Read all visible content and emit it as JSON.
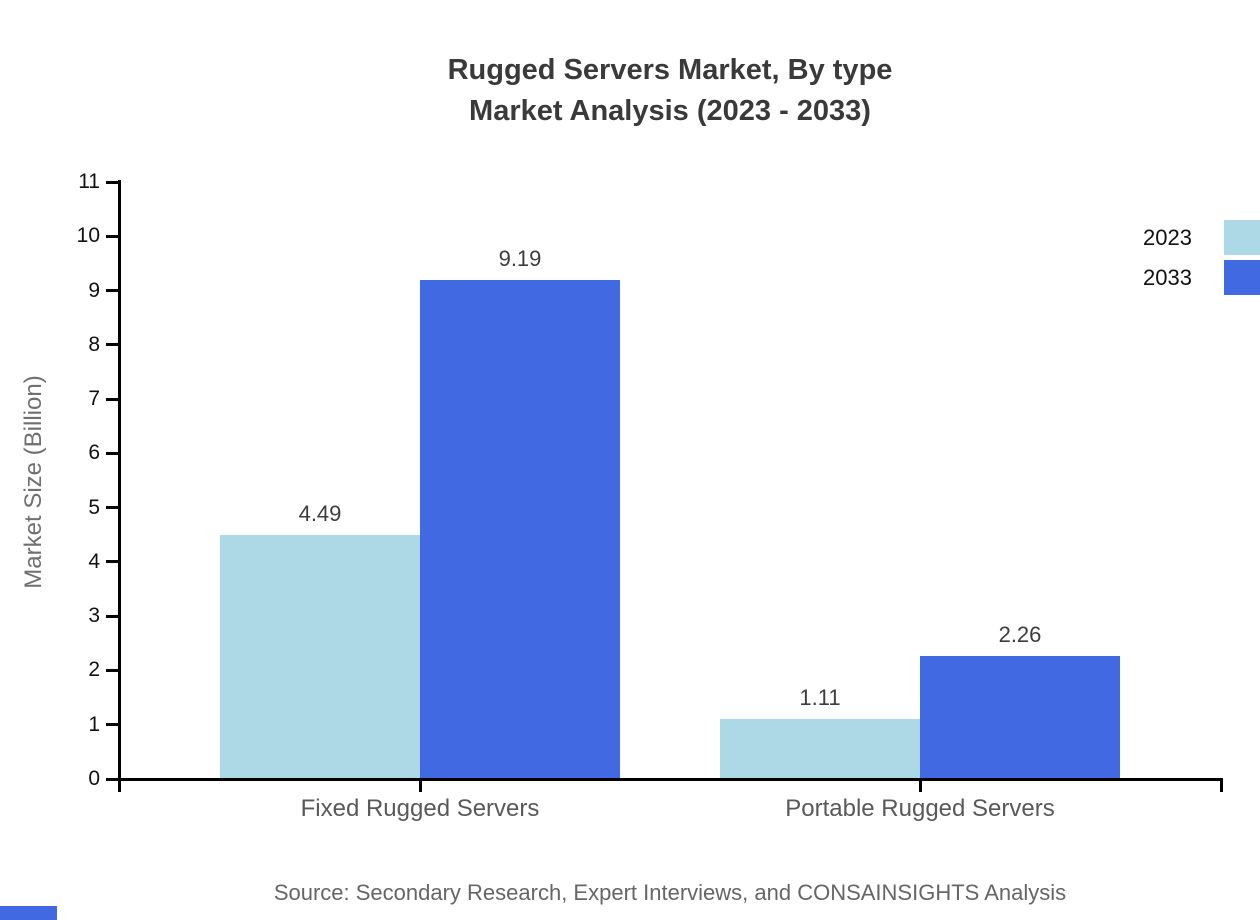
{
  "title": {
    "line1": "Rugged Servers Market, By type",
    "line2": "Market Analysis (2023 - 2033)"
  },
  "chart_data": {
    "type": "bar",
    "categories": [
      "Fixed Rugged Servers",
      "Portable Rugged Servers"
    ],
    "series": [
      {
        "name": "2023",
        "color": "#ADD8E6",
        "values": [
          4.49,
          1.11
        ]
      },
      {
        "name": "2033",
        "color": "#4169E1",
        "values": [
          9.19,
          2.26
        ]
      }
    ],
    "value_labels": [
      [
        "4.49",
        "1.11"
      ],
      [
        "9.19",
        "2.26"
      ]
    ],
    "ylabel": "Market Size (Billion)",
    "xlabel": "",
    "ylim": [
      0,
      11
    ],
    "ytick_step": 1,
    "yticks": [
      0,
      1,
      2,
      3,
      4,
      5,
      6,
      7,
      8,
      9,
      10,
      11
    ],
    "grid": false,
    "legend_position": "top-right"
  },
  "source": "Source: Secondary Research, Expert Interviews, and CONSAINSIGHTS Analysis",
  "colors": {
    "title_text": "#3a3a3a",
    "axis": "#000000",
    "tick_label": "#111111",
    "category_label": "#595959",
    "axis_title": "#707070",
    "source_text": "#666666",
    "series_2023": "#ADD8E6",
    "series_2033": "#4169E1",
    "brand_mark": "#4169E1"
  }
}
